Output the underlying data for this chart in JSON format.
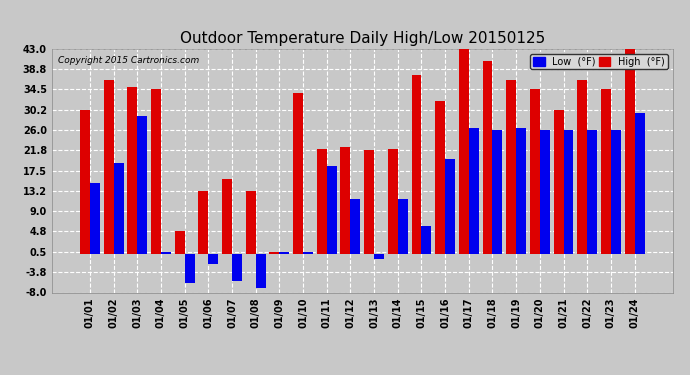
{
  "title": "Outdoor Temperature Daily High/Low 20150125",
  "copyright": "Copyright 2015 Cartronics.com",
  "legend_low": "Low  (°F)",
  "legend_high": "High  (°F)",
  "low_color": "#0000ee",
  "high_color": "#dd0000",
  "background_color": "#c8c8c8",
  "plot_bg_color": "#c8c8c8",
  "grid_color": "#ffffff",
  "dates": [
    "01/01",
    "01/02",
    "01/03",
    "01/04",
    "01/05",
    "01/06",
    "01/07",
    "01/08",
    "01/09",
    "01/10",
    "01/11",
    "01/12",
    "01/13",
    "01/14",
    "01/15",
    "01/16",
    "01/17",
    "01/18",
    "01/19",
    "01/20",
    "01/21",
    "01/22",
    "01/23",
    "01/24"
  ],
  "highs": [
    30.2,
    36.5,
    35.0,
    34.5,
    4.8,
    13.2,
    15.8,
    13.2,
    0.5,
    33.8,
    22.0,
    22.5,
    21.8,
    22.0,
    37.5,
    32.0,
    44.0,
    40.5,
    36.5,
    34.5,
    30.2,
    36.5,
    34.5,
    43.0
  ],
  "lows": [
    15.0,
    19.0,
    29.0,
    0.5,
    -6.0,
    -2.0,
    -5.5,
    -7.0,
    0.5,
    0.5,
    18.5,
    11.5,
    -1.0,
    11.5,
    6.0,
    20.0,
    26.5,
    26.0,
    26.5,
    26.0,
    26.0,
    26.0,
    26.0,
    29.5
  ],
  "ylim": [
    -8.0,
    43.0
  ],
  "yticks": [
    -8.0,
    -3.8,
    0.5,
    4.8,
    9.0,
    13.2,
    17.5,
    21.8,
    26.0,
    30.2,
    34.5,
    38.8,
    43.0
  ],
  "title_fontsize": 11,
  "tick_fontsize": 7,
  "figwidth": 6.9,
  "figheight": 3.75,
  "dpi": 100
}
